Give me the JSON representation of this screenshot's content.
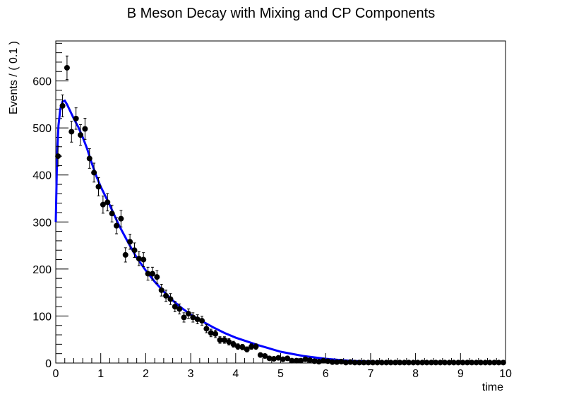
{
  "chart_data": {
    "type": "scatter",
    "title": "B Meson Decay with Mixing and CP Components",
    "xlabel": "time",
    "ylabel": "Events / ( 0.1 )",
    "xlim": [
      0,
      10
    ],
    "ylim": [
      0,
      685
    ],
    "x_ticks": [
      0,
      1,
      2,
      3,
      4,
      5,
      6,
      7,
      8,
      9,
      10
    ],
    "y_ticks": [
      0,
      100,
      200,
      300,
      400,
      500,
      600
    ],
    "grid": false,
    "series": [
      {
        "kind": "points_with_errors",
        "color": "#000000",
        "x": [
          0.05,
          0.15,
          0.25,
          0.35,
          0.45,
          0.55,
          0.65,
          0.75,
          0.85,
          0.95,
          1.05,
          1.15,
          1.25,
          1.35,
          1.45,
          1.55,
          1.65,
          1.75,
          1.85,
          1.95,
          2.05,
          2.15,
          2.25,
          2.35,
          2.45,
          2.55,
          2.65,
          2.75,
          2.85,
          2.95,
          3.05,
          3.15,
          3.25,
          3.35,
          3.45,
          3.55,
          3.65,
          3.75,
          3.85,
          3.95,
          4.05,
          4.15,
          4.25,
          4.35,
          4.45,
          4.55,
          4.65,
          4.75,
          4.85,
          4.95,
          5.05,
          5.15,
          5.25,
          5.35,
          5.45,
          5.55,
          5.65,
          5.75,
          5.85,
          5.95,
          6.05,
          6.15,
          6.25,
          6.35,
          6.45,
          6.55,
          6.65,
          6.75,
          6.85,
          6.95,
          7.05,
          7.15,
          7.25,
          7.35,
          7.45,
          7.55,
          7.65,
          7.75,
          7.85,
          7.95,
          8.05,
          8.15,
          8.25,
          8.35,
          8.45,
          8.55,
          8.65,
          8.75,
          8.85,
          8.95,
          9.05,
          9.15,
          9.25,
          9.35,
          9.45,
          9.55,
          9.65,
          9.75,
          9.85,
          9.95
        ],
        "y": [
          440,
          547,
          628,
          492,
          520,
          485,
          498,
          435,
          405,
          375,
          337,
          342,
          318,
          292,
          307,
          230,
          258,
          240,
          222,
          220,
          190,
          190,
          183,
          155,
          143,
          136,
          120,
          115,
          97,
          105,
          97,
          93,
          90,
          73,
          64,
          62,
          49,
          49,
          45,
          40,
          35,
          34,
          29,
          35,
          35,
          17,
          15,
          10,
          9,
          11,
          8,
          10,
          5,
          5,
          5,
          8,
          6,
          4,
          3,
          5,
          4,
          2,
          2,
          3,
          1,
          2,
          1,
          1,
          1,
          1,
          1,
          1,
          1,
          1,
          1,
          1,
          1,
          1,
          1,
          1,
          1,
          1,
          1,
          1,
          1,
          1,
          1,
          1,
          1,
          1,
          1,
          1,
          1,
          1,
          1,
          1,
          1,
          1,
          1,
          1
        ]
      },
      {
        "kind": "fit_curve",
        "color": "#0000ff",
        "x": [
          0,
          0.03,
          0.06,
          0.1,
          0.15,
          0.2,
          0.25,
          0.3,
          0.4,
          0.5,
          0.6,
          0.7,
          0.8,
          0.9,
          1.0,
          1.2,
          1.4,
          1.6,
          1.8,
          2.0,
          2.2,
          2.4,
          2.6,
          2.8,
          3.0,
          3.25,
          3.5,
          3.75,
          4.0,
          4.5,
          5.0,
          5.5,
          6.0,
          6.5,
          7.0,
          8.0,
          9.0,
          10.0
        ],
        "y": [
          300,
          445,
          505,
          540,
          556,
          558,
          550,
          540,
          520,
          502,
          480,
          455,
          425,
          398,
          375,
          336,
          294,
          258,
          224,
          197,
          173,
          152,
          133,
          117,
          103,
          89,
          76,
          64,
          54,
          38,
          24,
          15,
          9,
          5,
          3,
          1,
          0.5,
          0.2
        ]
      }
    ]
  }
}
